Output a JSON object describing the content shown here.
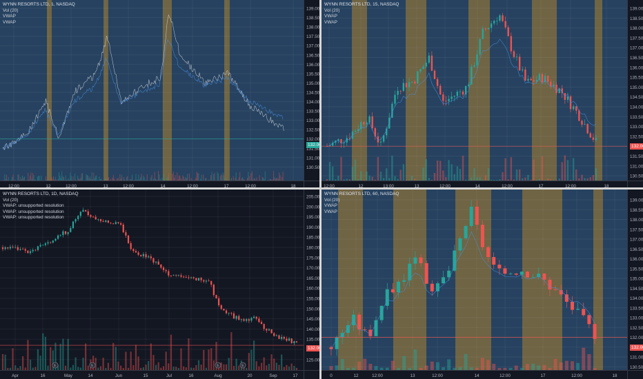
{
  "panes": [
    {
      "id": "p1",
      "symbol": "WYNN RESORTS LTD, 1, NASDAQ",
      "studies": [
        "Vol (20)",
        "VWAP",
        "VWAP"
      ],
      "price_ticks": [
        "139.00",
        "138.50",
        "138.00",
        "137.50",
        "137.00",
        "136.50",
        "136.00",
        "135.50",
        "135.00",
        "134.50",
        "134.00",
        "133.50",
        "133.00",
        "132.50",
        "132.00",
        "131.50",
        "131.00",
        "130.50"
      ],
      "time_ticks": [
        "12:00",
        "12",
        "12:00",
        "13",
        "12:00",
        "14",
        "12:00",
        "17",
        "12:00",
        "18"
      ],
      "last_price": "132.00",
      "last_color": "#26a69a"
    },
    {
      "id": "p2",
      "symbol": "WYNN RESORTS LTD, 15, NASDAQ",
      "studies": [
        "Vol (20)",
        "VWAP",
        "VWAP"
      ],
      "price_ticks": [
        "139.00",
        "138.50",
        "138.00",
        "137.50",
        "137.00",
        "136.50",
        "136.00",
        "135.50",
        "135.00",
        "134.50",
        "134.00",
        "133.50",
        "133.00",
        "132.50",
        "132.00",
        "131.50",
        "131.00",
        "130.50"
      ],
      "time_ticks": [
        "12:00",
        "12",
        "13:00",
        "13",
        "12:00",
        "14",
        "12:00",
        "17",
        "12:00",
        "18"
      ],
      "last_price": "132.00",
      "last_color": "#ef5350"
    },
    {
      "id": "p3",
      "symbol": "WYNN RESORTS LTD, 1D, NASDAQ",
      "studies": [
        "Vol (20)",
        "VWAP: unsupported resolution",
        "VWAP: unsupported resolution",
        "VWAP: unsupported resolution"
      ],
      "price_ticks": [
        "205.00",
        "200.00",
        "195.00",
        "190.00",
        "185.00",
        "180.00",
        "175.00",
        "170.00",
        "165.00",
        "160.00",
        "155.00",
        "150.00",
        "145.00",
        "140.00",
        "135.00",
        "130.00",
        "125.00"
      ],
      "time_ticks": [
        "Apr",
        "16",
        "May",
        "14",
        "Jun",
        "15",
        "Jul",
        "16",
        "Aug",
        "20",
        "Sep",
        "17"
      ],
      "last_price": "132.00",
      "last_color": "#ef5350"
    },
    {
      "id": "p4",
      "symbol": "WYNN RESORTS LTD, 60, NASDAQ",
      "studies": [
        "Vol (20)",
        "VWAP",
        "VWAP"
      ],
      "price_ticks": [
        "139.00",
        "138.50",
        "138.00",
        "137.50",
        "137.00",
        "136.50",
        "136.00",
        "135.50",
        "135.00",
        "134.50",
        "134.00",
        "133.50",
        "133.00",
        "132.50",
        "132.00",
        "131.50",
        "131.00",
        "130.50"
      ],
      "time_ticks": [
        "0",
        "12",
        "12:00",
        "13",
        "12:00",
        "14",
        "12:00",
        "17",
        "12:00",
        "18"
      ],
      "last_price": "132.00",
      "last_color": "#ef5350"
    }
  ],
  "colors": {
    "up": "#26a69a",
    "down": "#ef5350",
    "session_bg": "#2a4a6b",
    "extended_bg": "#7d6a3f",
    "pane_bg": "#131722"
  }
}
